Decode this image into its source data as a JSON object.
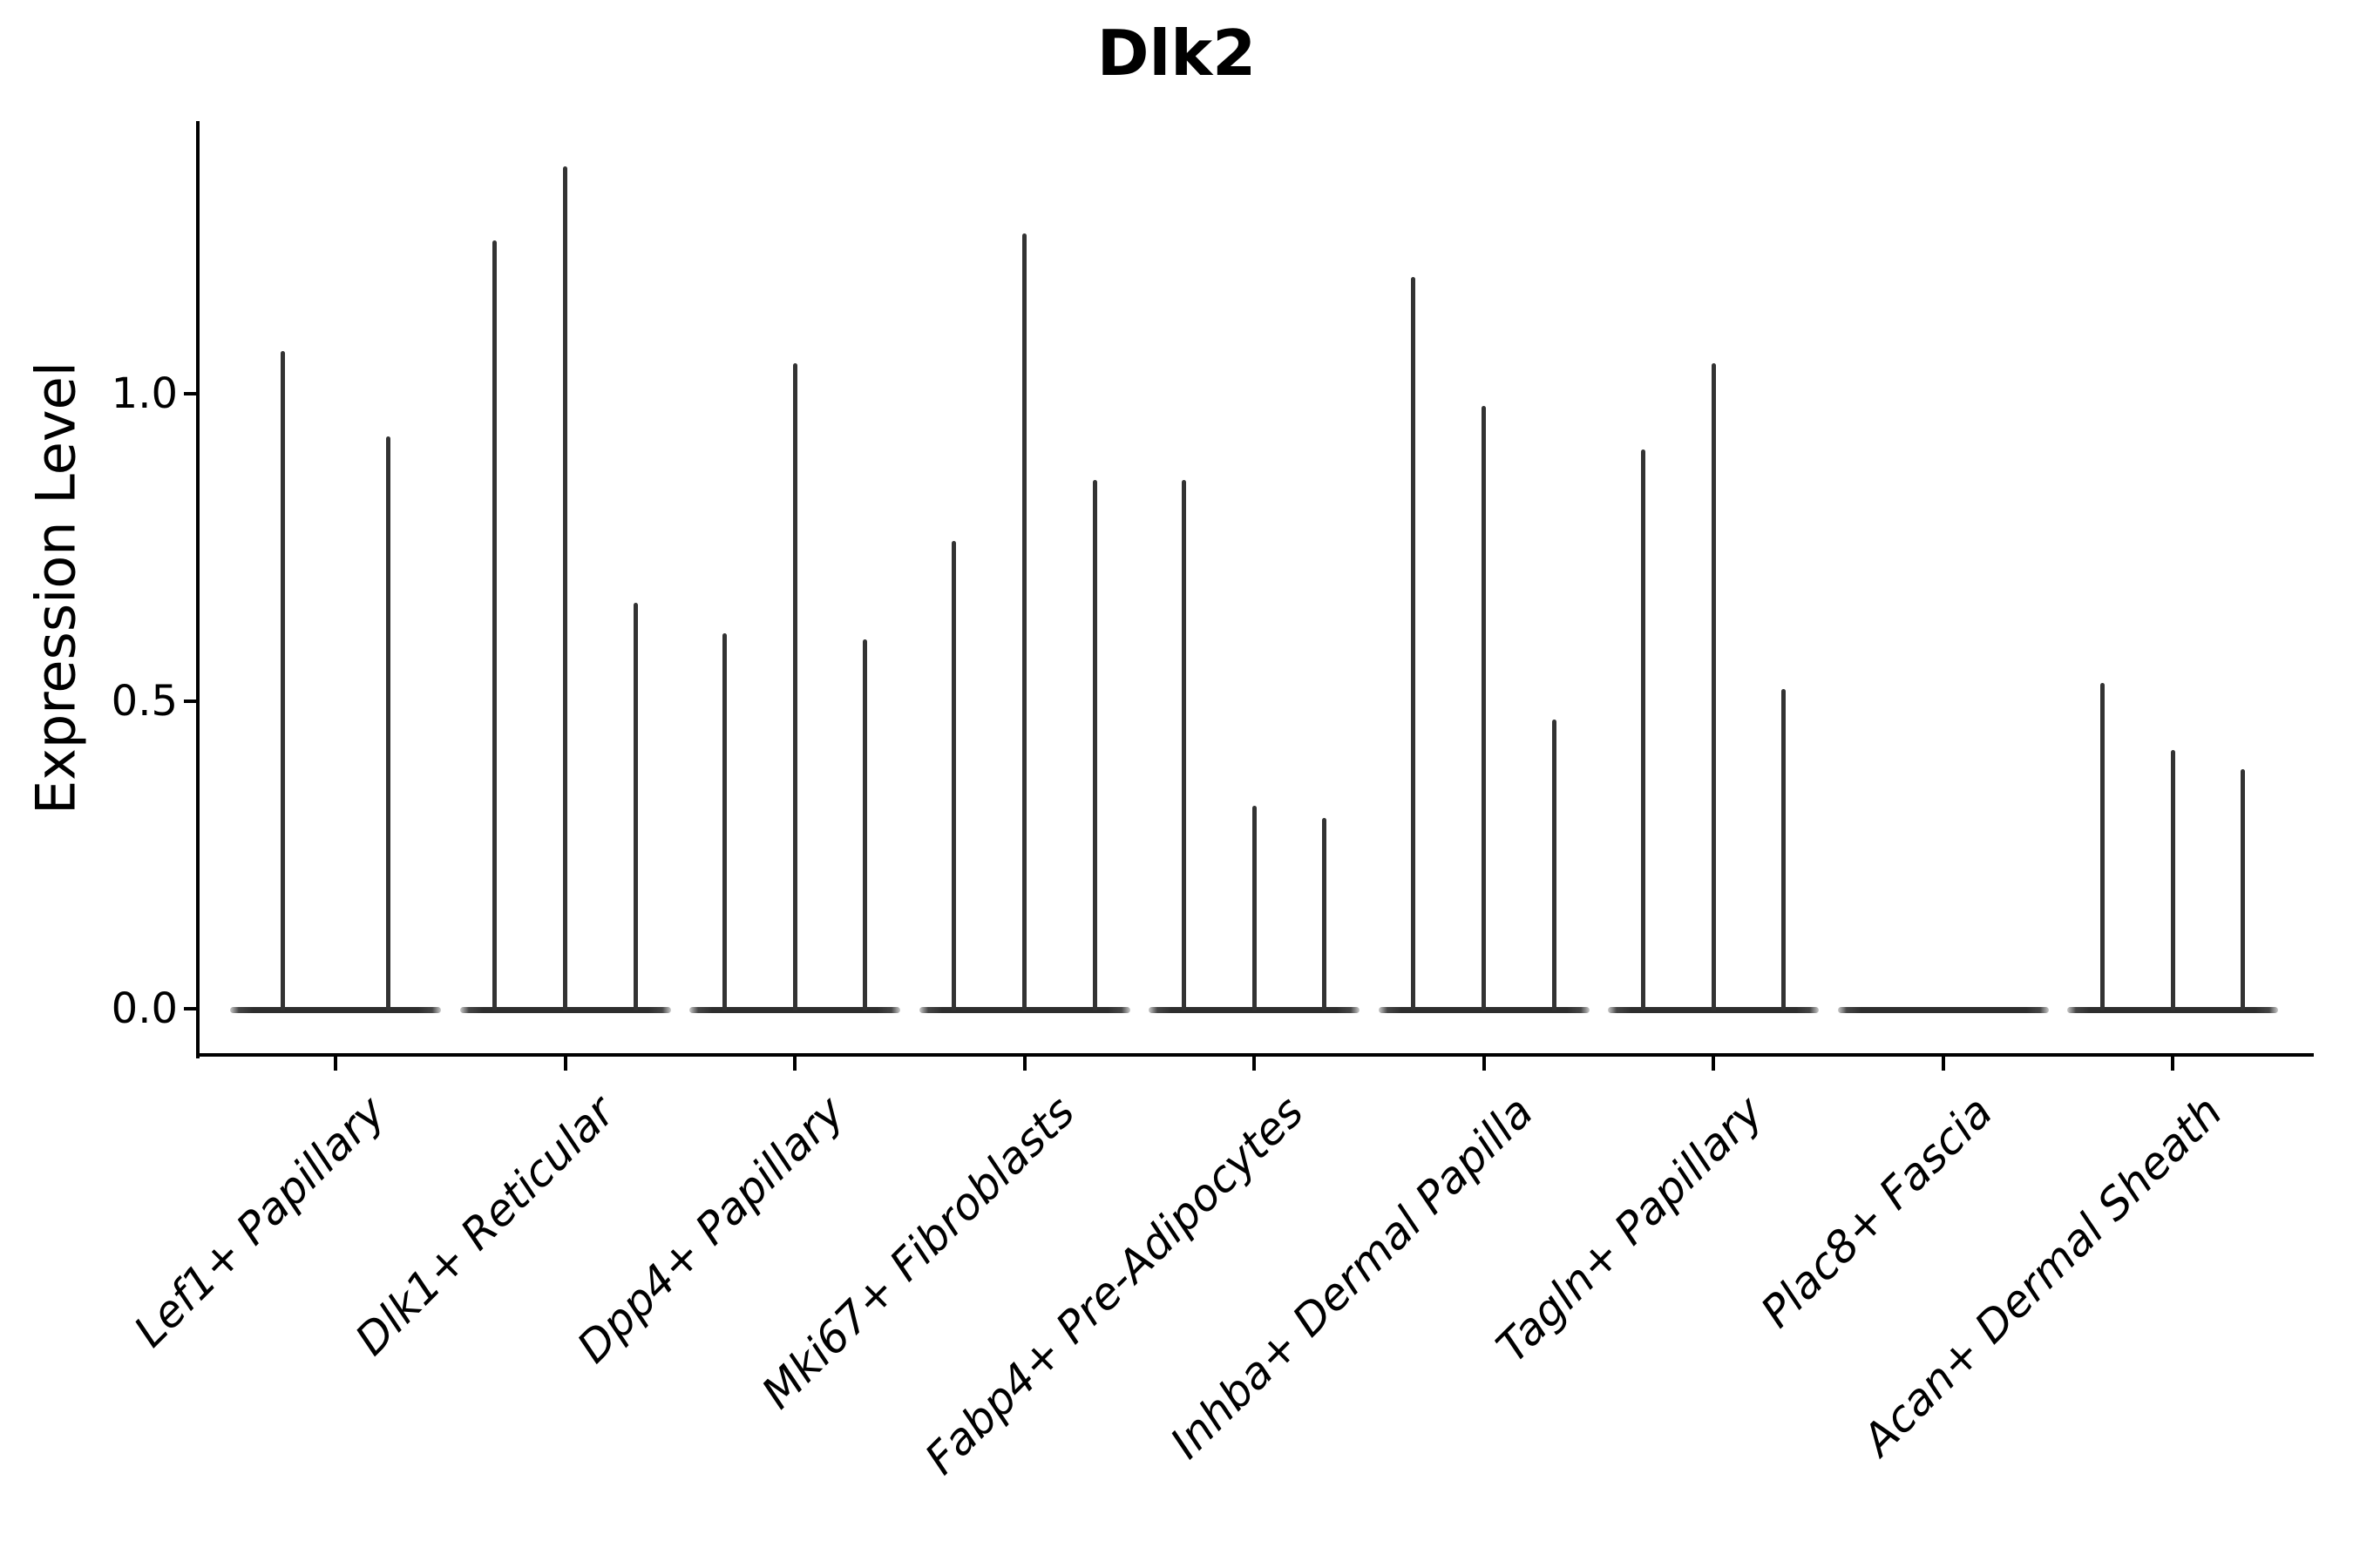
{
  "chart_data": {
    "type": "violin",
    "title": "Dlk2",
    "xlabel": "",
    "ylabel": "Expression Level",
    "yticks": [
      0.0,
      0.5,
      1.0
    ],
    "ylim": [
      -0.1,
      1.45
    ],
    "grid": false,
    "legend": "none",
    "style_note": "scanpy-style violins collapsed flat at 0 with thin vertical spikes reaching each violin max; x tick labels italic, rotated 45 degrees",
    "categories": [
      "Lef1+ Papillary",
      "Dlk1+ Reticular",
      "Dpp4+ Papillary",
      "Mki67+ Fibroblasts",
      "Fabp4+ Pre-Adipocytes",
      "Inhba+ Dermal Papilla",
      "Tagln+ Papillary",
      "Plac8+ Fascia",
      "Acan+ Dermal Sheath"
    ],
    "groups": [
      {
        "category": "Lef1+ Papillary",
        "spike_max_values": [
          1.07,
          0.93
        ]
      },
      {
        "category": "Dlk1+ Reticular",
        "spike_max_values": [
          1.25,
          1.37,
          0.66
        ]
      },
      {
        "category": "Dpp4+ Papillary",
        "spike_max_values": [
          0.61,
          1.05,
          0.6
        ]
      },
      {
        "category": "Mki67+ Fibroblasts",
        "spike_max_values": [
          0.76,
          1.26,
          0.86
        ]
      },
      {
        "category": "Fabp4+ Pre-Adipocytes",
        "spike_max_values": [
          0.86,
          0.33,
          0.31
        ]
      },
      {
        "category": "Inhba+ Dermal Papilla",
        "spike_max_values": [
          1.19,
          0.98,
          0.47
        ]
      },
      {
        "category": "Tagln+ Papillary",
        "spike_max_values": [
          0.91,
          1.05,
          0.52
        ]
      },
      {
        "category": "Plac8+ Fascia",
        "spike_max_values": []
      },
      {
        "category": "Acan+ Dermal Sheath",
        "spike_max_values": [
          0.53,
          0.42,
          0.39
        ]
      }
    ],
    "colors": {
      "background": "#ffffff",
      "axis": "#000000",
      "text": "#000000",
      "violin": "#333333"
    }
  }
}
